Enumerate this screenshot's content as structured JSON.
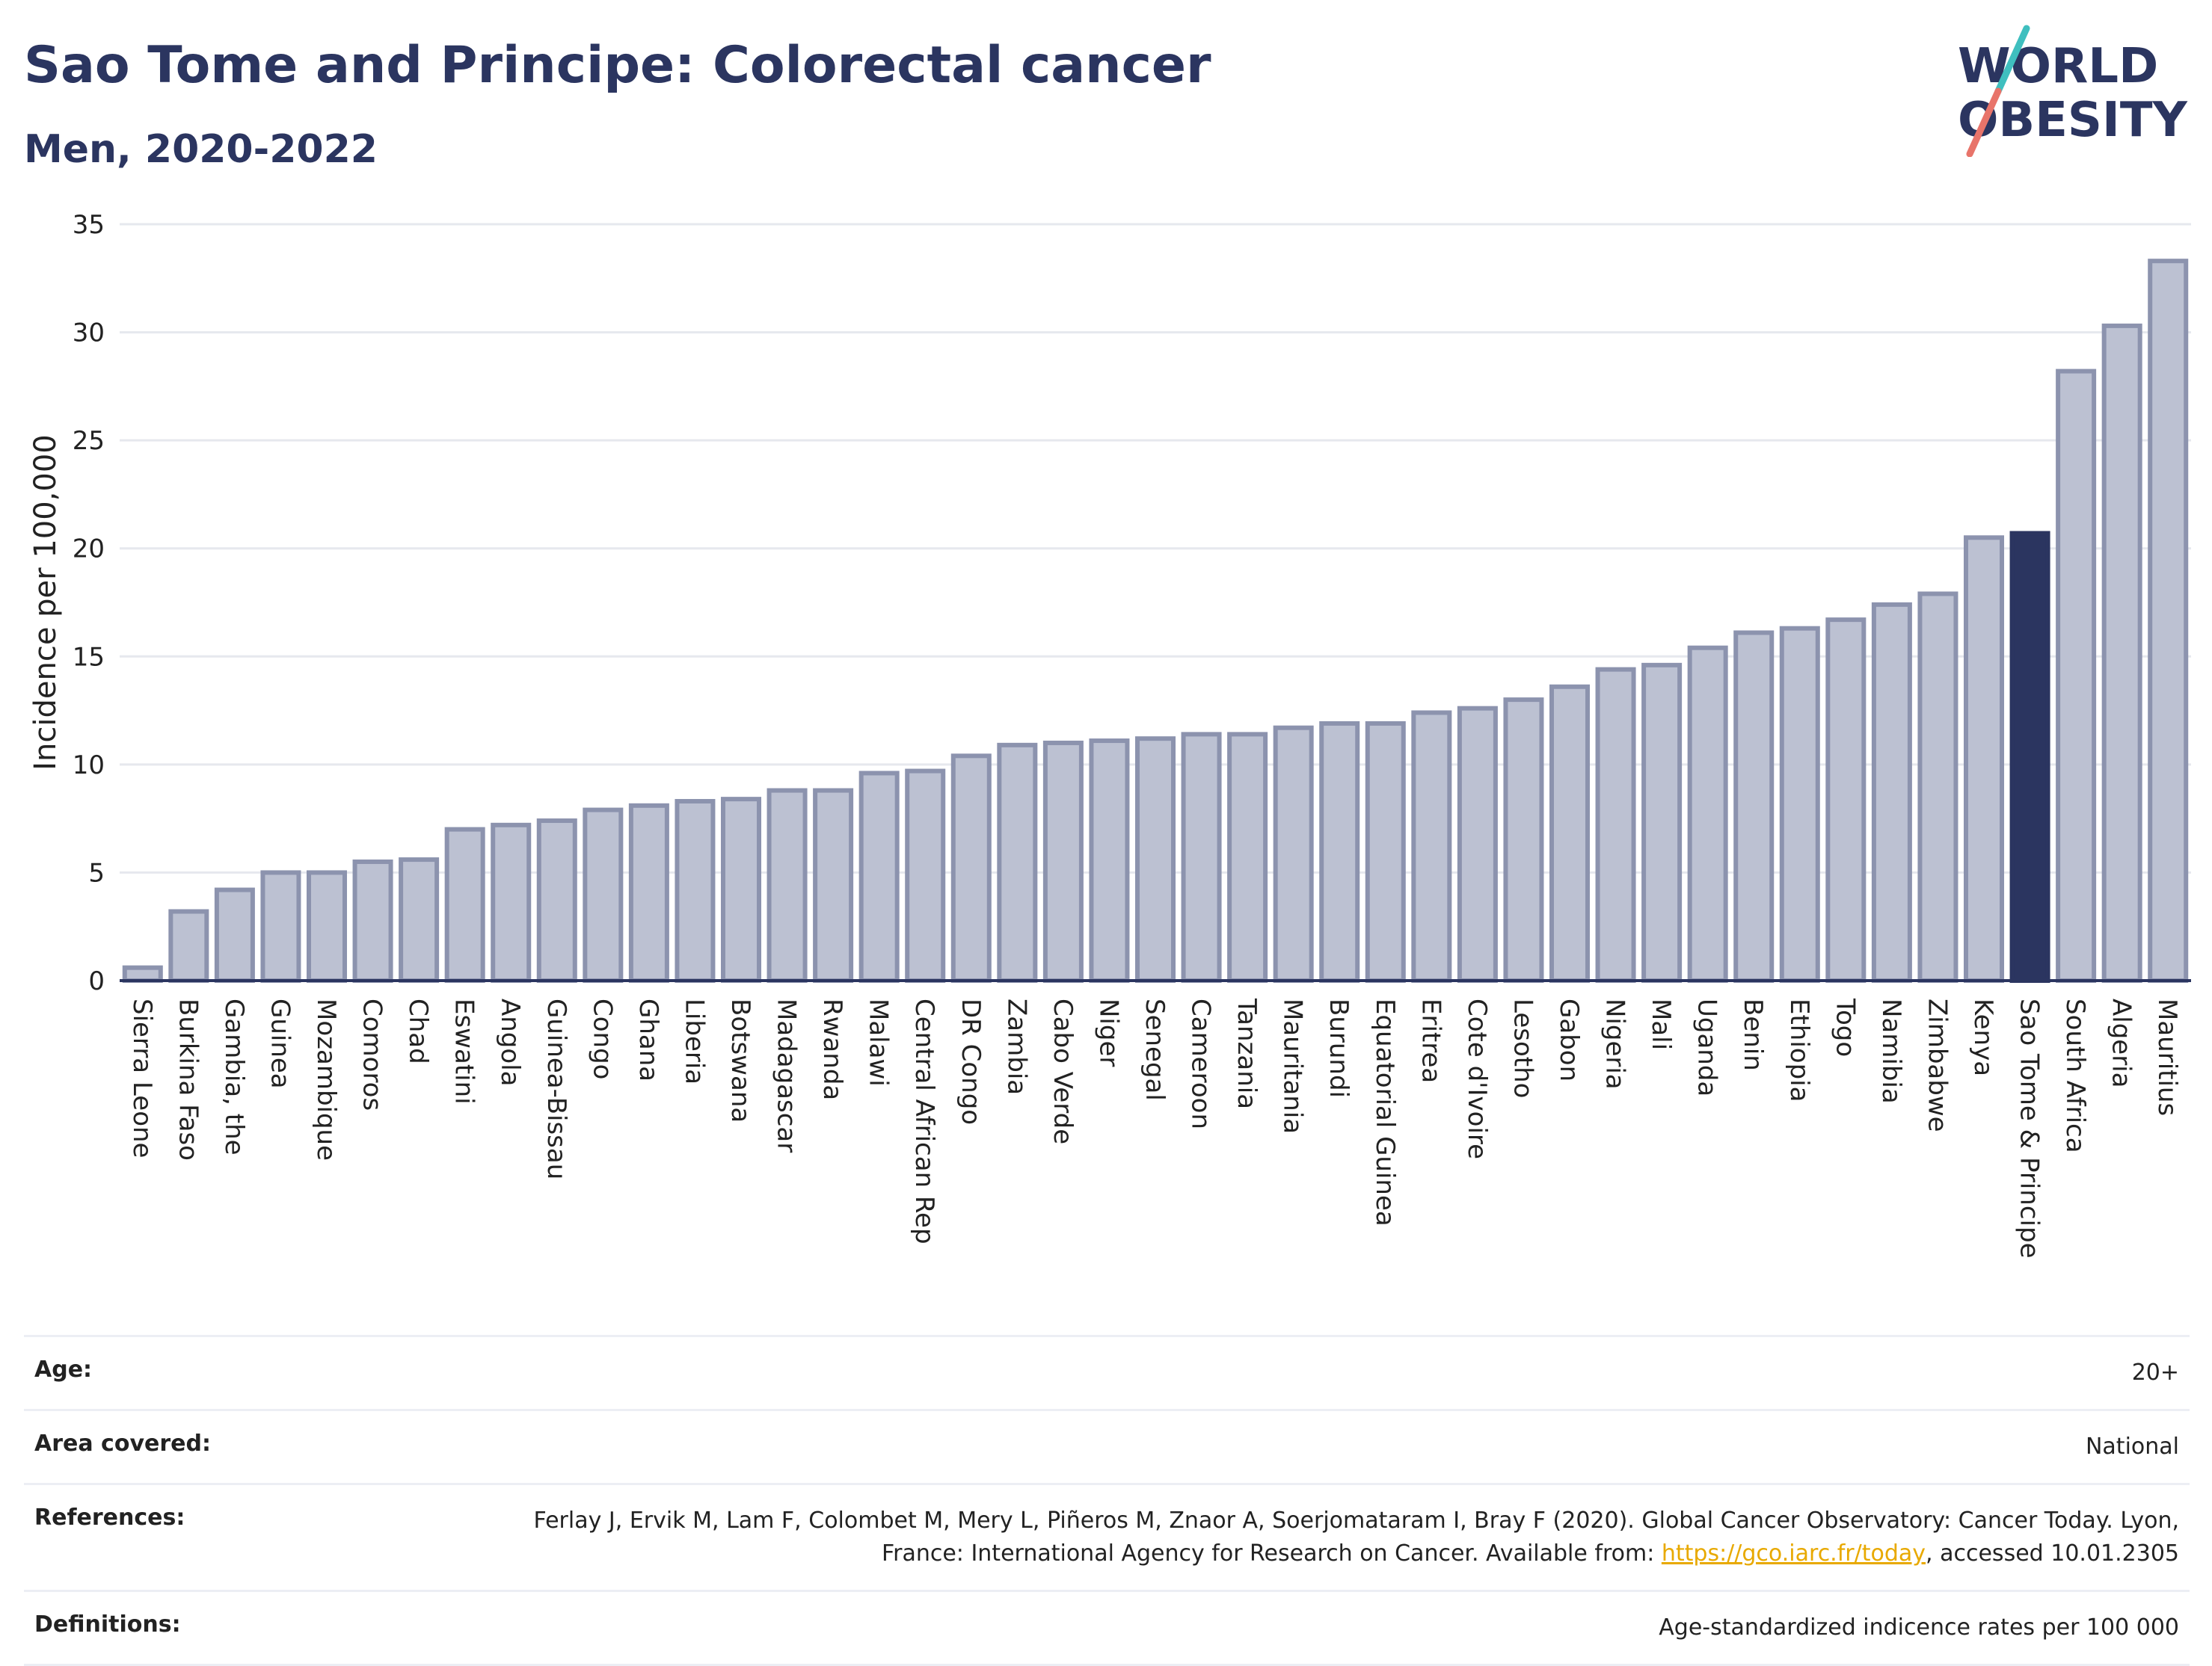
{
  "header": {
    "title": "Sao Tome and Principe: Colorectal cancer",
    "subtitle": "Men, 2020-2022"
  },
  "logo": {
    "line1": "WORLD",
    "line2": "OBESITY"
  },
  "colors": {
    "bar": "#bcc1d2",
    "bar_border": "#8c93ae",
    "highlight": "#2b3560",
    "grid": "#e6e8ee"
  },
  "chart_data": {
    "type": "bar",
    "ylabel": "Incidence per 100,000",
    "ylim": [
      0,
      35
    ],
    "yticks": [
      0,
      5,
      10,
      15,
      20,
      25,
      30,
      35
    ],
    "grid": true,
    "highlight": "Sao Tome & Principe",
    "categories": [
      "Sierra Leone",
      "Burkina Faso",
      "Gambia, the",
      "Guinea",
      "Mozambique",
      "Comoros",
      "Chad",
      "Eswatini",
      "Angola",
      "Guinea-Bissau",
      "Congo",
      "Ghana",
      "Liberia",
      "Botswana",
      "Madagascar",
      "Rwanda",
      "Malawi",
      "Central African Rep",
      "DR Congo",
      "Zambia",
      "Cabo Verde",
      "Niger",
      "Senegal",
      "Cameroon",
      "Tanzania",
      "Mauritania",
      "Burundi",
      "Equatorial Guinea",
      "Eritrea",
      "Cote d'Ivoire",
      "Lesotho",
      "Gabon",
      "Nigeria",
      "Mali",
      "Uganda",
      "Benin",
      "Ethiopia",
      "Togo",
      "Namibia",
      "Zimbabwe",
      "Kenya",
      "Sao Tome & Principe",
      "South Africa",
      "Algeria",
      "Mauritius"
    ],
    "values": [
      0.6,
      3.2,
      4.2,
      5.0,
      5.0,
      5.5,
      5.6,
      7.0,
      7.2,
      7.4,
      7.9,
      8.1,
      8.3,
      8.4,
      8.8,
      8.8,
      9.6,
      9.7,
      10.4,
      10.9,
      11.0,
      11.1,
      11.2,
      11.4,
      11.4,
      11.7,
      11.9,
      11.9,
      12.4,
      12.6,
      13.0,
      13.6,
      14.4,
      14.6,
      15.4,
      16.1,
      16.3,
      16.7,
      17.4,
      17.9,
      20.5,
      20.7,
      28.2,
      30.3,
      33.3
    ]
  },
  "info": {
    "age_label": "Age:",
    "age_value": "20+",
    "area_label": "Area covered:",
    "area_value": "National",
    "references_label": "References:",
    "references_text": "Ferlay J, Ervik M, Lam F, Colombet M, Mery L, Piñeros M, Znaor A, Soerjomataram I, Bray F (2020). Global Cancer Observatory: Cancer Today. Lyon, France: International Agency for Research on Cancer. Available from:",
    "references_link": "https://gco.iarc.fr/today",
    "references_suffix": ", accessed 10.01.2305",
    "definitions_label": "Definitions:",
    "definitions_value": "Age-standardized indicence rates per 100 000"
  }
}
